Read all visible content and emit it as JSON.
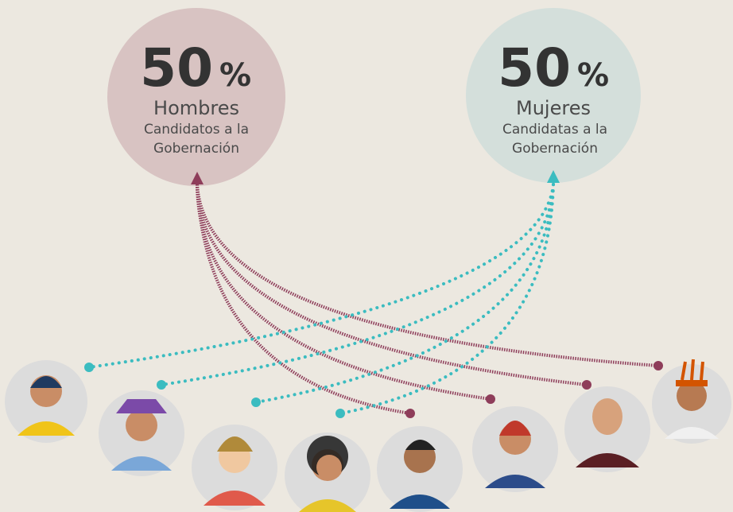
{
  "groups": [
    {
      "percent": "50",
      "unit": "%",
      "label": "Hombres",
      "lines": [
        "Candidatos a la",
        "Gobernación"
      ]
    },
    {
      "percent": "50",
      "unit": "%",
      "label": "Mujeres",
      "lines": [
        "Candidatas a la",
        "Gobernación"
      ]
    }
  ]
}
